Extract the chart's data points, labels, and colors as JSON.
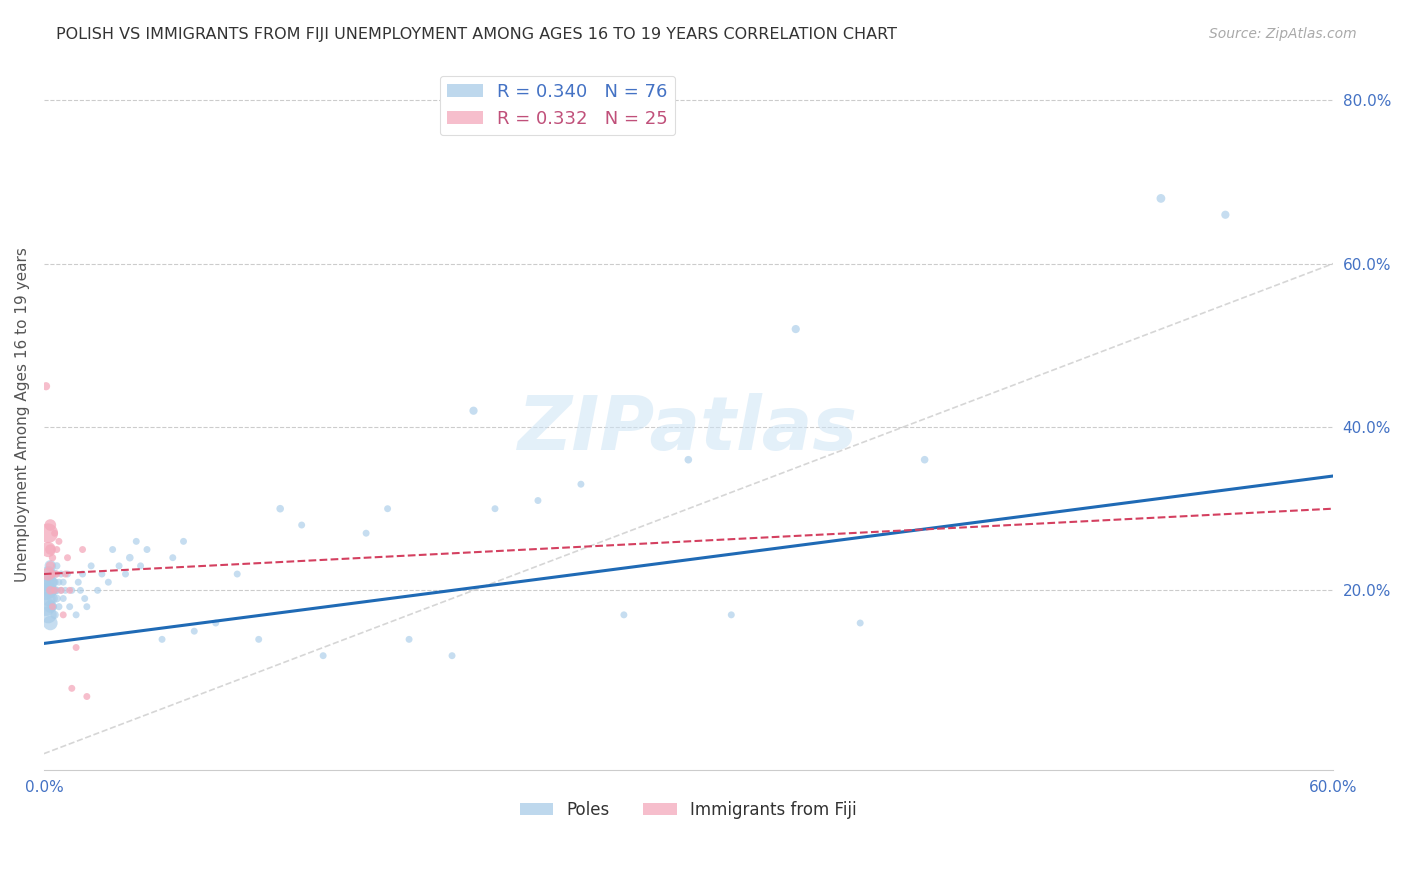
{
  "title": "POLISH VS IMMIGRANTS FROM FIJI UNEMPLOYMENT AMONG AGES 16 TO 19 YEARS CORRELATION CHART",
  "source": "Source: ZipAtlas.com",
  "ylabel": "Unemployment Among Ages 16 to 19 years",
  "xlim": [
    0.0,
    0.6
  ],
  "ylim": [
    -0.02,
    0.85
  ],
  "yticks_right": [
    0.2,
    0.4,
    0.6,
    0.8
  ],
  "ytick_labels_right": [
    "20.0%",
    "40.0%",
    "60.0%",
    "80.0%"
  ],
  "blue_color": "#a8cce8",
  "pink_color": "#f4a9bb",
  "trend_blue_color": "#1f6ab5",
  "trend_pink_color": "#d44060",
  "diag_color": "#cccccc",
  "R_blue": 0.34,
  "N_blue": 76,
  "R_pink": 0.332,
  "N_pink": 25,
  "legend_label_blue": "Poles",
  "legend_label_pink": "Immigrants from Fiji",
  "watermark": "ZIPatlas",
  "blue_trend_start_y": 0.135,
  "blue_trend_end_y": 0.34,
  "pink_trend_start_y": 0.22,
  "pink_trend_end_y": 0.3,
  "blue_x": [
    0.001,
    0.001,
    0.001,
    0.002,
    0.002,
    0.002,
    0.002,
    0.003,
    0.003,
    0.003,
    0.003,
    0.003,
    0.004,
    0.004,
    0.004,
    0.004,
    0.005,
    0.005,
    0.005,
    0.005,
    0.006,
    0.006,
    0.006,
    0.007,
    0.007,
    0.008,
    0.008,
    0.009,
    0.009,
    0.01,
    0.011,
    0.012,
    0.013,
    0.015,
    0.016,
    0.017,
    0.018,
    0.019,
    0.02,
    0.022,
    0.025,
    0.027,
    0.03,
    0.032,
    0.035,
    0.038,
    0.04,
    0.043,
    0.045,
    0.048,
    0.055,
    0.06,
    0.065,
    0.07,
    0.08,
    0.09,
    0.1,
    0.11,
    0.12,
    0.13,
    0.15,
    0.16,
    0.17,
    0.19,
    0.2,
    0.21,
    0.23,
    0.25,
    0.27,
    0.3,
    0.32,
    0.35,
    0.38,
    0.41,
    0.52,
    0.55
  ],
  "blue_y": [
    0.2,
    0.18,
    0.21,
    0.17,
    0.2,
    0.22,
    0.19,
    0.16,
    0.2,
    0.21,
    0.18,
    0.23,
    0.19,
    0.21,
    0.2,
    0.18,
    0.2,
    0.22,
    0.17,
    0.21,
    0.19,
    0.2,
    0.23,
    0.18,
    0.21,
    0.2,
    0.22,
    0.19,
    0.21,
    0.2,
    0.22,
    0.18,
    0.2,
    0.17,
    0.21,
    0.2,
    0.22,
    0.19,
    0.18,
    0.23,
    0.2,
    0.22,
    0.21,
    0.25,
    0.23,
    0.22,
    0.24,
    0.26,
    0.23,
    0.25,
    0.14,
    0.24,
    0.26,
    0.15,
    0.16,
    0.22,
    0.14,
    0.3,
    0.28,
    0.12,
    0.27,
    0.3,
    0.14,
    0.12,
    0.42,
    0.3,
    0.31,
    0.33,
    0.17,
    0.36,
    0.17,
    0.52,
    0.16,
    0.36,
    0.68,
    0.66
  ],
  "blue_size": [
    200,
    180,
    160,
    150,
    140,
    130,
    120,
    110,
    100,
    90,
    80,
    70,
    60,
    55,
    50,
    45,
    40,
    38,
    36,
    34,
    32,
    30,
    28,
    26,
    25,
    25,
    25,
    25,
    25,
    25,
    25,
    25,
    25,
    25,
    25,
    25,
    25,
    25,
    25,
    25,
    25,
    25,
    25,
    25,
    25,
    25,
    30,
    25,
    25,
    25,
    25,
    25,
    25,
    25,
    25,
    25,
    25,
    30,
    25,
    25,
    25,
    25,
    25,
    25,
    35,
    25,
    25,
    25,
    25,
    30,
    25,
    35,
    25,
    30,
    40,
    35
  ],
  "pink_x": [
    0.001,
    0.002,
    0.002,
    0.002,
    0.003,
    0.003,
    0.003,
    0.003,
    0.004,
    0.004,
    0.004,
    0.005,
    0.005,
    0.006,
    0.006,
    0.007,
    0.008,
    0.009,
    0.01,
    0.011,
    0.012,
    0.013,
    0.015,
    0.018,
    0.02
  ],
  "pink_y": [
    0.45,
    0.27,
    0.25,
    0.22,
    0.28,
    0.25,
    0.23,
    0.2,
    0.22,
    0.24,
    0.18,
    0.27,
    0.2,
    0.25,
    0.22,
    0.26,
    0.2,
    0.17,
    0.22,
    0.24,
    0.2,
    0.08,
    0.13,
    0.25,
    0.07
  ],
  "pink_size": [
    35,
    200,
    120,
    90,
    70,
    55,
    45,
    38,
    32,
    28,
    25,
    25,
    25,
    25,
    25,
    25,
    25,
    25,
    25,
    25,
    25,
    25,
    25,
    25,
    25
  ]
}
